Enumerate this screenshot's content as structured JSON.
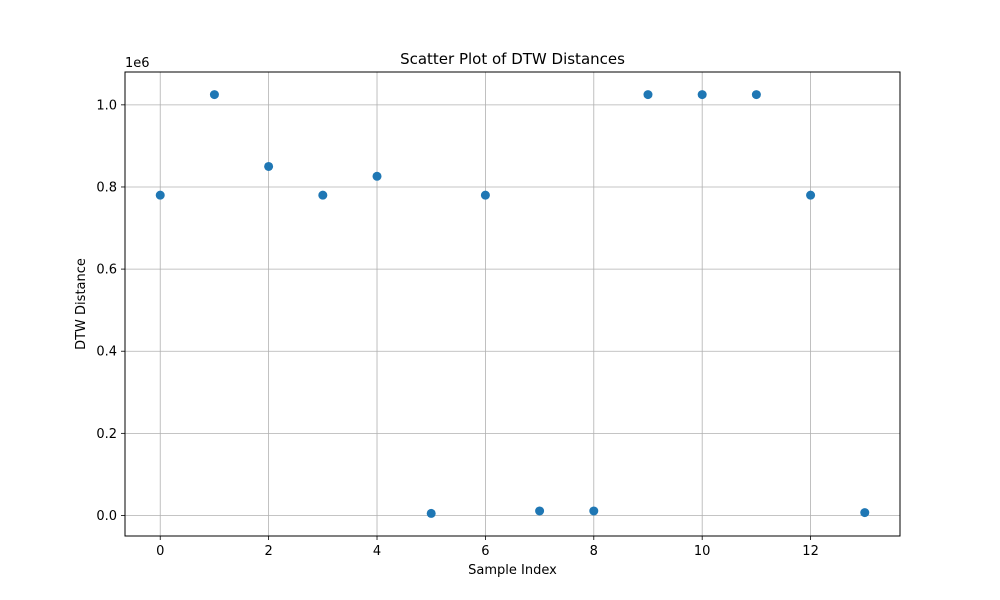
{
  "chart_data": {
    "type": "scatter",
    "title": "Scatter Plot of DTW Distances",
    "xlabel": "Sample Index",
    "ylabel": "DTW Distance",
    "y_offset_label": "1e6",
    "xlim": [
      -0.65,
      13.65
    ],
    "ylim": [
      -0.05,
      1.08
    ],
    "x_ticks": [
      0,
      2,
      4,
      6,
      8,
      10,
      12
    ],
    "x_tick_labels": [
      "0",
      "2",
      "4",
      "6",
      "8",
      "10",
      "12"
    ],
    "y_ticks": [
      0.0,
      0.2,
      0.4,
      0.6,
      0.8,
      1.0
    ],
    "y_tick_labels": [
      "0.0",
      "0.2",
      "0.4",
      "0.6",
      "0.8",
      "1.0"
    ],
    "grid": true,
    "series": [
      {
        "color": "#1f77b4",
        "points": [
          {
            "x": 0,
            "y": 0.78
          },
          {
            "x": 1,
            "y": 1.025
          },
          {
            "x": 2,
            "y": 0.85
          },
          {
            "x": 3,
            "y": 0.78
          },
          {
            "x": 4,
            "y": 0.826
          },
          {
            "x": 5,
            "y": 0.005
          },
          {
            "x": 6,
            "y": 0.78
          },
          {
            "x": 7,
            "y": 0.011
          },
          {
            "x": 8,
            "y": 0.011
          },
          {
            "x": 9,
            "y": 1.025
          },
          {
            "x": 10,
            "y": 1.025
          },
          {
            "x": 11,
            "y": 1.025
          },
          {
            "x": 12,
            "y": 0.78
          },
          {
            "x": 13,
            "y": 0.007
          }
        ]
      }
    ]
  }
}
